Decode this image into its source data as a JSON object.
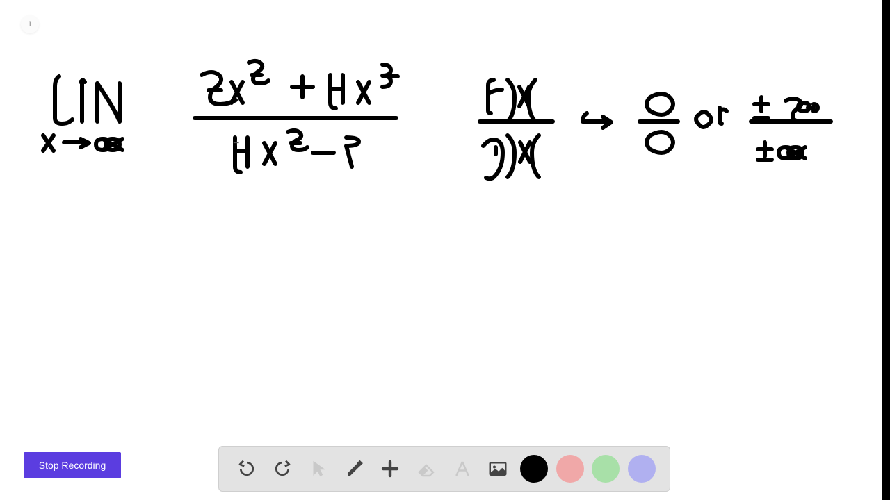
{
  "page_indicator": "1",
  "stop_button_label": "Stop Recording",
  "cursor_cross": "+",
  "toolbar": {
    "colors": {
      "black": "#000000",
      "pink": "#f0a8a8",
      "green": "#a8e0a8",
      "purple": "#b0b0f0"
    },
    "icon_color_active": "#444444",
    "icon_color_faded": "#9a9a9a"
  },
  "handwriting": {
    "stroke_color": "#000000",
    "stroke_width": 6,
    "paths": [
      "M85 110 q-6 4 -6 15 q0 30 0 45 q0 8 10 8 q10 0 15 -6",
      "M118 120 l0 55",
      "M116 118 l3 -3 l3 3",
      "M140 120 l0 55",
      "M140 120 q10 15 18 28 q8 13 14 27",
      "M172 120 l0 55",
      "M62 195 l15 22 M77 195 l-15 22",
      "M92 205 l30 0 M116 200 l12 6 l-12 6",
      "M148 200 q10 0 10 8 q0 8 -10 8 q-10 0 -10 -8 q0 -8 10 -8 M162 200 q10 0 10 8 q0 8 -10 8 q-10 0 -10 -8 q0 -8 10 -8 M148 200 l28 16 M176 200 l-28 16",
      "M280 170 l290 0",
      "M290 108 q15 -8 25 0 q8 8 -5 18 q-8 6 -8 14 q0 10 15 10 q12 0 22 -6 M300 130 l18 0",
      "M333 118 l16 30 M349 118 l-16 30",
      "M358 90 q12 -5 18 2 q4 6 -6 12 q-6 4 -6 10 q0 6 10 6 q8 0 12 -4 M362 108 l14 0",
      "M420 125 l30 0 M435 110 l0 30",
      "M475 108 l0 40 q0 8 8 8 M475 128 l18 0 M493 108 l0 40",
      "M515 118 l16 30 M531 118 l-16 30",
      "M550 93 q12 0 12 8 q0 8 -12 8 l0 0 q12 0 12 8 q0 8 -12 8 M560 110 l12 0",
      "M338 198 l0 42 q0 8 8 8 M338 218 l18 0 M356 198 l0 42",
      "M380 206 l16 30 M396 206 l-16 30",
      "M414 190 q12 -5 18 2 q4 6 -6 10 q-6 4 -6 8 q0 6 10 6 q8 0 12 -4 M418 206 l14 0",
      "M450 220 l30 0",
      "M498 198 q18 0 18 6 q0 6 -18 6 l8 30",
      "M690 175 l105 0",
      "M710 115 q-8 0 -8 8 q0 8 0 20 q0 8 0 16 q0 4 4 4 M702 135 q10 -6 20 -6",
      "M730 115 q10 10 10 25 q0 25 -10 35",
      "M747 125 l14 28 M761 125 l-14 28",
      "M770 115 q-10 10 -10 25 q0 25 10 35",
      "M695 210 q10 -12 20 -8 q8 4 8 18 q0 20 -10 32 q-6 8 -14 4 M713 222 l0 -10",
      "M730 195 q10 10 10 25 q0 25 -10 35",
      "M748 205 l14 28 M762 205 l-14 28",
      "M775 195 q-10 10 -10 25 q0 25 10 35",
      "M838 175 l35 0 M867 168 l12 8 l-12 8 M838 175 q0 -8 6 -12",
      "M920 175 l55 0",
      "M935 140 q18 -10 28 0 q10 10 0 20 q-10 10 -28 0 q-10 -10 0 -20",
      "M935 195 q18 -10 28 0 q10 10 0 20 q-10 10 -28 0 q-10 -10 0 -20",
      "M1005 165 q8 -8 14 0 q8 8 0 14 q-8 8 -14 0 q-8 -8 0 -14",
      "M1035 155 l0 20 q0 3 3 3 M1035 160 q6 -5 10 0",
      "M1080 175 l115 0",
      "M1095 140 l0 20 M1085 150 l20 0",
      "M1085 170 l20 0",
      "M1130 145 q12 -6 20 0 q6 6 -4 12 q-6 4 -6 10 q0 8 12 8",
      "M1156 148 q8 0 8 6 q0 6 -8 6 q-8 0 -8 -6 q0 -6 8 -6 M1162 155 l8 0 M1170 150 q6 0 6 5 q0 5 -6 5",
      "M1100 205 l0 20 M1090 215 l20 0",
      "M1090 230 l20 0",
      "M1130 212 q10 0 10 8 q0 8 -10 8 q-10 0 -10 -8 q0 -8 10 -8 M1144 212 q10 0 10 8 q0 8 -10 8 q-10 0 -10 -8 q0 -8 10 -8 M1130 212 l28 16 M1158 212 l-28 16"
    ]
  }
}
